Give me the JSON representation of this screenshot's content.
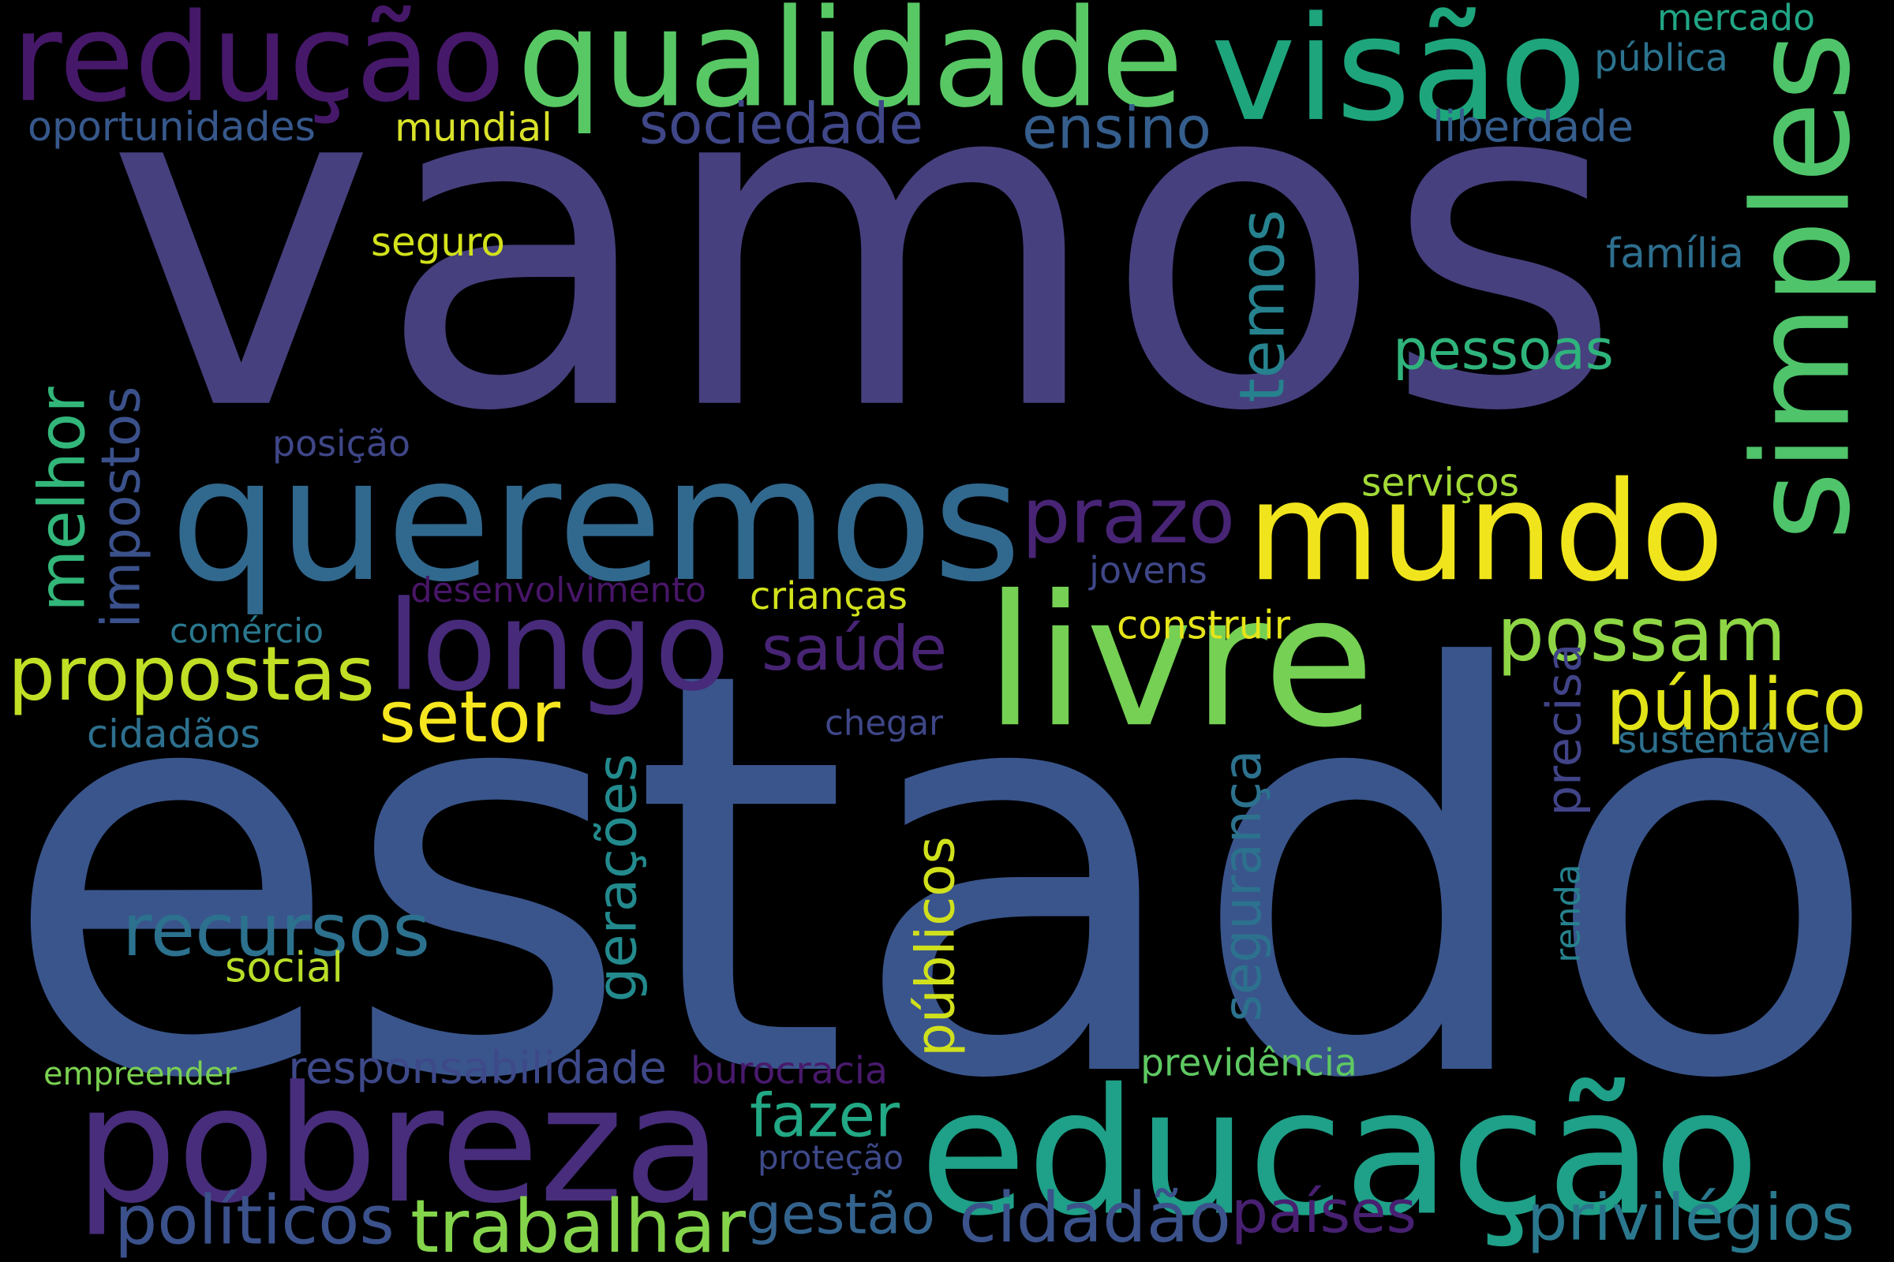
{
  "word_cloud": {
    "words": [
      {
        "text": "vamos",
        "color": "#46407e",
        "orientation": "horizontal"
      },
      {
        "text": "estado",
        "color": "#3a558c",
        "orientation": "horizontal"
      },
      {
        "text": "redução",
        "color": "#461869",
        "orientation": "horizontal"
      },
      {
        "text": "qualidade",
        "color": "#58c865",
        "orientation": "horizontal"
      },
      {
        "text": "visão",
        "color": "#1ea57c",
        "orientation": "horizontal"
      },
      {
        "text": "mercado",
        "color": "#21a685",
        "orientation": "horizontal"
      },
      {
        "text": "pública",
        "color": "#2b738e",
        "orientation": "horizontal"
      },
      {
        "text": "oportunidades",
        "color": "#37588c",
        "orientation": "horizontal"
      },
      {
        "text": "mundial",
        "color": "#d9e229",
        "orientation": "horizontal"
      },
      {
        "text": "sociedade",
        "color": "#3f4788",
        "orientation": "horizontal"
      },
      {
        "text": "ensino",
        "color": "#355e8d",
        "orientation": "horizontal"
      },
      {
        "text": "liberdade",
        "color": "#355e8d",
        "orientation": "horizontal"
      },
      {
        "text": "simples",
        "color": "#4fc46a",
        "orientation": "vertical"
      },
      {
        "text": "seguro",
        "color": "#d2e21b",
        "orientation": "horizontal"
      },
      {
        "text": "família",
        "color": "#2e6e8e",
        "orientation": "horizontal"
      },
      {
        "text": "temos",
        "color": "#26828e",
        "orientation": "vertical"
      },
      {
        "text": "pessoas",
        "color": "#2fb47c",
        "orientation": "horizontal"
      },
      {
        "text": "melhor",
        "color": "#32b67a",
        "orientation": "vertical"
      },
      {
        "text": "impostos",
        "color": "#3b518b",
        "orientation": "vertical"
      },
      {
        "text": "posição",
        "color": "#3f4788",
        "orientation": "horizontal"
      },
      {
        "text": "queremos",
        "color": "#31688e",
        "orientation": "horizontal"
      },
      {
        "text": "prazo",
        "color": "#482475",
        "orientation": "horizontal"
      },
      {
        "text": "mundo",
        "color": "#f0e51c",
        "orientation": "horizontal"
      },
      {
        "text": "serviços",
        "color": "#a2da37",
        "orientation": "horizontal"
      },
      {
        "text": "jovens",
        "color": "#3f4788",
        "orientation": "horizontal"
      },
      {
        "text": "desenvolvimento",
        "color": "#481668",
        "orientation": "horizontal"
      },
      {
        "text": "crianças",
        "color": "#d2e21b",
        "orientation": "horizontal"
      },
      {
        "text": "comércio",
        "color": "#2a788e",
        "orientation": "horizontal"
      },
      {
        "text": "longo",
        "color": "#472a7a",
        "orientation": "horizontal"
      },
      {
        "text": "saúde",
        "color": "#482475",
        "orientation": "horizontal"
      },
      {
        "text": "livre",
        "color": "#75d054",
        "orientation": "horizontal"
      },
      {
        "text": "construir",
        "color": "#e5e419",
        "orientation": "horizontal"
      },
      {
        "text": "possam",
        "color": "#8ed645",
        "orientation": "horizontal"
      },
      {
        "text": "propostas",
        "color": "#c0df25",
        "orientation": "horizontal"
      },
      {
        "text": "setor",
        "color": "#f6e620",
        "orientation": "horizontal"
      },
      {
        "text": "público",
        "color": "#e2e418",
        "orientation": "horizontal"
      },
      {
        "text": "cidadãos",
        "color": "#2d708e",
        "orientation": "horizontal"
      },
      {
        "text": "chegar",
        "color": "#3f4788",
        "orientation": "horizontal"
      },
      {
        "text": "sustentável",
        "color": "#2d708e",
        "orientation": "horizontal"
      },
      {
        "text": "precisa",
        "color": "#414487",
        "orientation": "vertical"
      },
      {
        "text": "segurança",
        "color": "#2c728e",
        "orientation": "vertical"
      },
      {
        "text": "gerações",
        "color": "#238a8d",
        "orientation": "vertical"
      },
      {
        "text": "públicos",
        "color": "#d0e11c",
        "orientation": "vertical"
      },
      {
        "text": "recursos",
        "color": "#2c718e",
        "orientation": "horizontal"
      },
      {
        "text": "renda",
        "color": "#26828e",
        "orientation": "vertical"
      },
      {
        "text": "social",
        "color": "#b8de29",
        "orientation": "horizontal"
      },
      {
        "text": "empreender",
        "color": "#7ad151",
        "orientation": "horizontal"
      },
      {
        "text": "responsabilidade",
        "color": "#3e4989",
        "orientation": "horizontal"
      },
      {
        "text": "burocracia",
        "color": "#481a6c",
        "orientation": "horizontal"
      },
      {
        "text": "previdência",
        "color": "#5ec962",
        "orientation": "horizontal"
      },
      {
        "text": "pobreza",
        "color": "#472d7b",
        "orientation": "horizontal"
      },
      {
        "text": "educação",
        "color": "#1fa088",
        "orientation": "horizontal"
      },
      {
        "text": "fazer",
        "color": "#22a884",
        "orientation": "horizontal"
      },
      {
        "text": "proteção",
        "color": "#3e4989",
        "orientation": "horizontal"
      },
      {
        "text": "políticos",
        "color": "#3b518b",
        "orientation": "horizontal"
      },
      {
        "text": "trabalhar",
        "color": "#84d44b",
        "orientation": "horizontal"
      },
      {
        "text": "gestão",
        "color": "#33638d",
        "orientation": "horizontal"
      },
      {
        "text": "cidadão",
        "color": "#3b528b",
        "orientation": "horizontal"
      },
      {
        "text": "países",
        "color": "#482071",
        "orientation": "horizontal"
      },
      {
        "text": "privilégios",
        "color": "#2a788e",
        "orientation": "horizontal"
      }
    ]
  }
}
